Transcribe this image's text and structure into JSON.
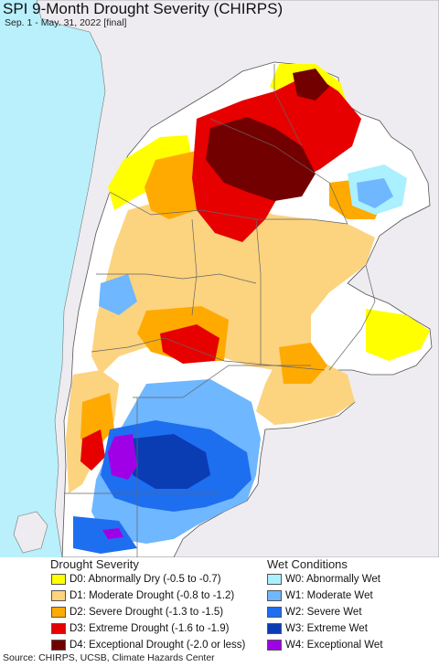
{
  "title": "SPI 9-Month Drought Severity (CHIRPS)",
  "subtitle": "Sep. 1 - May. 31, 2022 [final]",
  "source": "Source: CHIRPS, UCSB, Climate Hazards Center",
  "legend": {
    "drought_heading": "Drought Severity",
    "wet_heading": "Wet Conditions",
    "drought": [
      {
        "label": "D0: Abnormally Dry (-0.5 to -0.7)",
        "color": "#ffff00"
      },
      {
        "label": "D1: Moderate Drought (-0.8 to -1.2)",
        "color": "#fcd37f"
      },
      {
        "label": "D2: Severe Drought (-1.3 to -1.5)",
        "color": "#ffaa00"
      },
      {
        "label": "D3: Extreme Drought (-1.6 to -1.9)",
        "color": "#e60000"
      },
      {
        "label": "D4: Exceptional Drought (-2.0 or less)",
        "color": "#730000"
      }
    ],
    "wet": [
      {
        "label": "W0: Abnormally Wet",
        "color": "#aaf0ff"
      },
      {
        "label": "W1: Moderate Wet",
        "color": "#6fb7ff"
      },
      {
        "label": "W2: Severe Wet",
        "color": "#1e6ef0"
      },
      {
        "label": "W3: Extreme Wet",
        "color": "#0a3cb4"
      },
      {
        "label": "W4: Exceptional Wet",
        "color": "#a000e6"
      }
    ]
  },
  "colors": {
    "ocean": "#b9f0fc",
    "outside_land": "#eeecf0",
    "normal": "#ffffff",
    "borders": "#555555"
  }
}
